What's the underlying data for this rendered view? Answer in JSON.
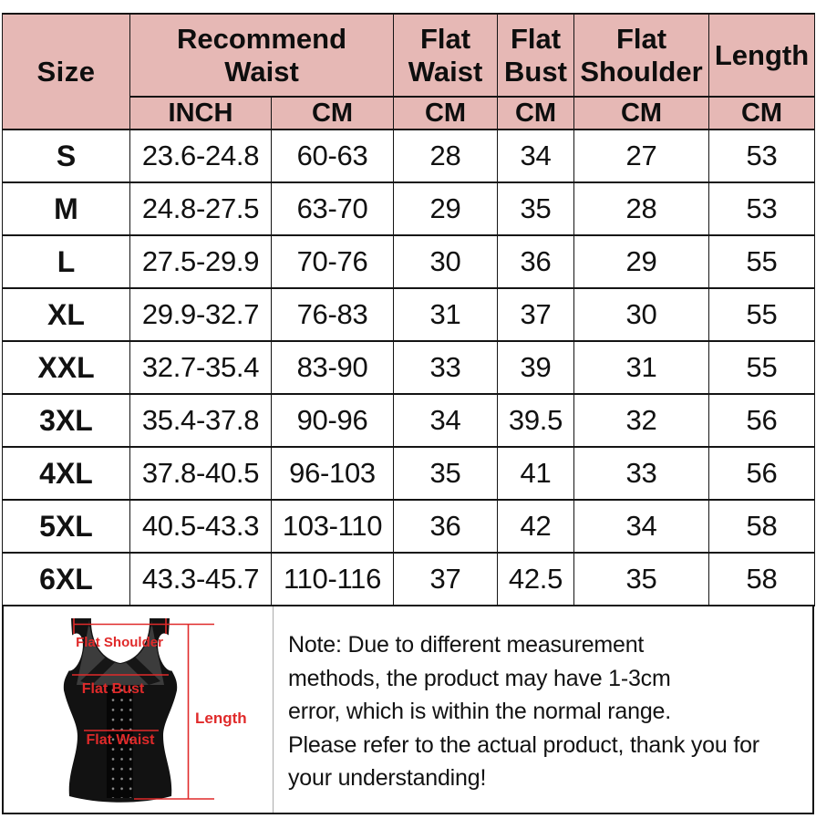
{
  "table": {
    "header": {
      "size": "Size",
      "recommend_waist": "Recommend Waist",
      "flat_waist": "Flat Waist",
      "flat_bust": "Flat Bust",
      "flat_shoulder": "Flat Shoulder",
      "length": "Length",
      "unit_inch": "INCH",
      "unit_cm": "CM"
    },
    "rows": [
      {
        "size": "S",
        "waist_inch": "23.6-24.8",
        "waist_cm": "60-63",
        "flat_waist": "28",
        "flat_bust": "34",
        "flat_shoulder": "27",
        "length": "53"
      },
      {
        "size": "M",
        "waist_inch": "24.8-27.5",
        "waist_cm": "63-70",
        "flat_waist": "29",
        "flat_bust": "35",
        "flat_shoulder": "28",
        "length": "53"
      },
      {
        "size": "L",
        "waist_inch": "27.5-29.9",
        "waist_cm": "70-76",
        "flat_waist": "30",
        "flat_bust": "36",
        "flat_shoulder": "29",
        "length": "55"
      },
      {
        "size": "XL",
        "waist_inch": "29.9-32.7",
        "waist_cm": "76-83",
        "flat_waist": "31",
        "flat_bust": "37",
        "flat_shoulder": "30",
        "length": "55"
      },
      {
        "size": "XXL",
        "waist_inch": "32.7-35.4",
        "waist_cm": "83-90",
        "flat_waist": "33",
        "flat_bust": "39",
        "flat_shoulder": "31",
        "length": "55"
      },
      {
        "size": "3XL",
        "waist_inch": "35.4-37.8",
        "waist_cm": "90-96",
        "flat_waist": "34",
        "flat_bust": "39.5",
        "flat_shoulder": "32",
        "length": "56"
      },
      {
        "size": "4XL",
        "waist_inch": "37.8-40.5",
        "waist_cm": "96-103",
        "flat_waist": "35",
        "flat_bust": "41",
        "flat_shoulder": "33",
        "length": "56"
      },
      {
        "size": "5XL",
        "waist_inch": "40.5-43.3",
        "waist_cm": "103-110",
        "flat_waist": "36",
        "flat_bust": "42",
        "flat_shoulder": "34",
        "length": "58"
      },
      {
        "size": "6XL",
        "waist_inch": "43.3-45.7",
        "waist_cm": "110-116",
        "flat_waist": "37",
        "flat_bust": "42.5",
        "flat_shoulder": "35",
        "length": "58"
      }
    ]
  },
  "diagram": {
    "labels": {
      "flat_shoulder": "Flat Shoulder",
      "flat_bust": "Flat Bust",
      "flat_waist": "Flat Waist",
      "length": "Length"
    },
    "annotation_color": "#e02a2a"
  },
  "note": {
    "lines": [
      "Note: Due to different measurement",
      "methods, the product may have 1-3cm",
      "error, which is within the normal range.",
      "Please refer to the actual product, thank you for",
      "your understanding!"
    ]
  },
  "colors": {
    "header_bg": "#e6b8b5",
    "border": "#141414",
    "annotation_red": "#e02a2a"
  }
}
